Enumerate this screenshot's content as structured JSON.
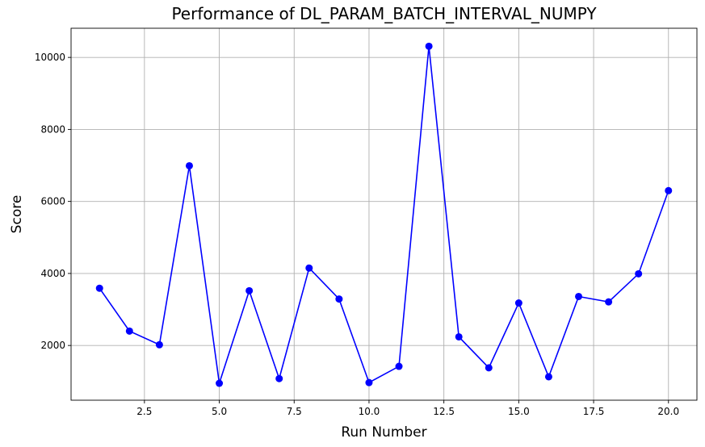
{
  "chart_data": {
    "type": "line",
    "title": "Performance of DL_PARAM_BATCH_INTERVAL_NUMPY",
    "xlabel": "Run Number",
    "ylabel": "Score",
    "xlim": [
      0.05,
      20.95
    ],
    "ylim": [
      480,
      10810
    ],
    "xticks": [
      2.5,
      5.0,
      7.5,
      10.0,
      12.5,
      15.0,
      17.5,
      20.0
    ],
    "xtick_labels": [
      "2.5",
      "5.0",
      "7.5",
      "10.0",
      "12.5",
      "15.0",
      "17.5",
      "20.0"
    ],
    "yticks": [
      2000,
      4000,
      6000,
      8000,
      10000
    ],
    "ytick_labels": [
      "2000",
      "4000",
      "6000",
      "8000",
      "10000"
    ],
    "grid": true,
    "line_color": "#0000ff",
    "marker": "circle",
    "series": [
      {
        "x": [
          1,
          2,
          3,
          4,
          5,
          6,
          7,
          8,
          9,
          10,
          11,
          12,
          13,
          14,
          15,
          16,
          17,
          18,
          19,
          20
        ],
        "y": [
          3590,
          2400,
          2020,
          6990,
          950,
          3520,
          1080,
          4150,
          3290,
          970,
          1420,
          10310,
          2240,
          1380,
          3180,
          1130,
          3360,
          3210,
          3990,
          6300
        ]
      }
    ]
  }
}
